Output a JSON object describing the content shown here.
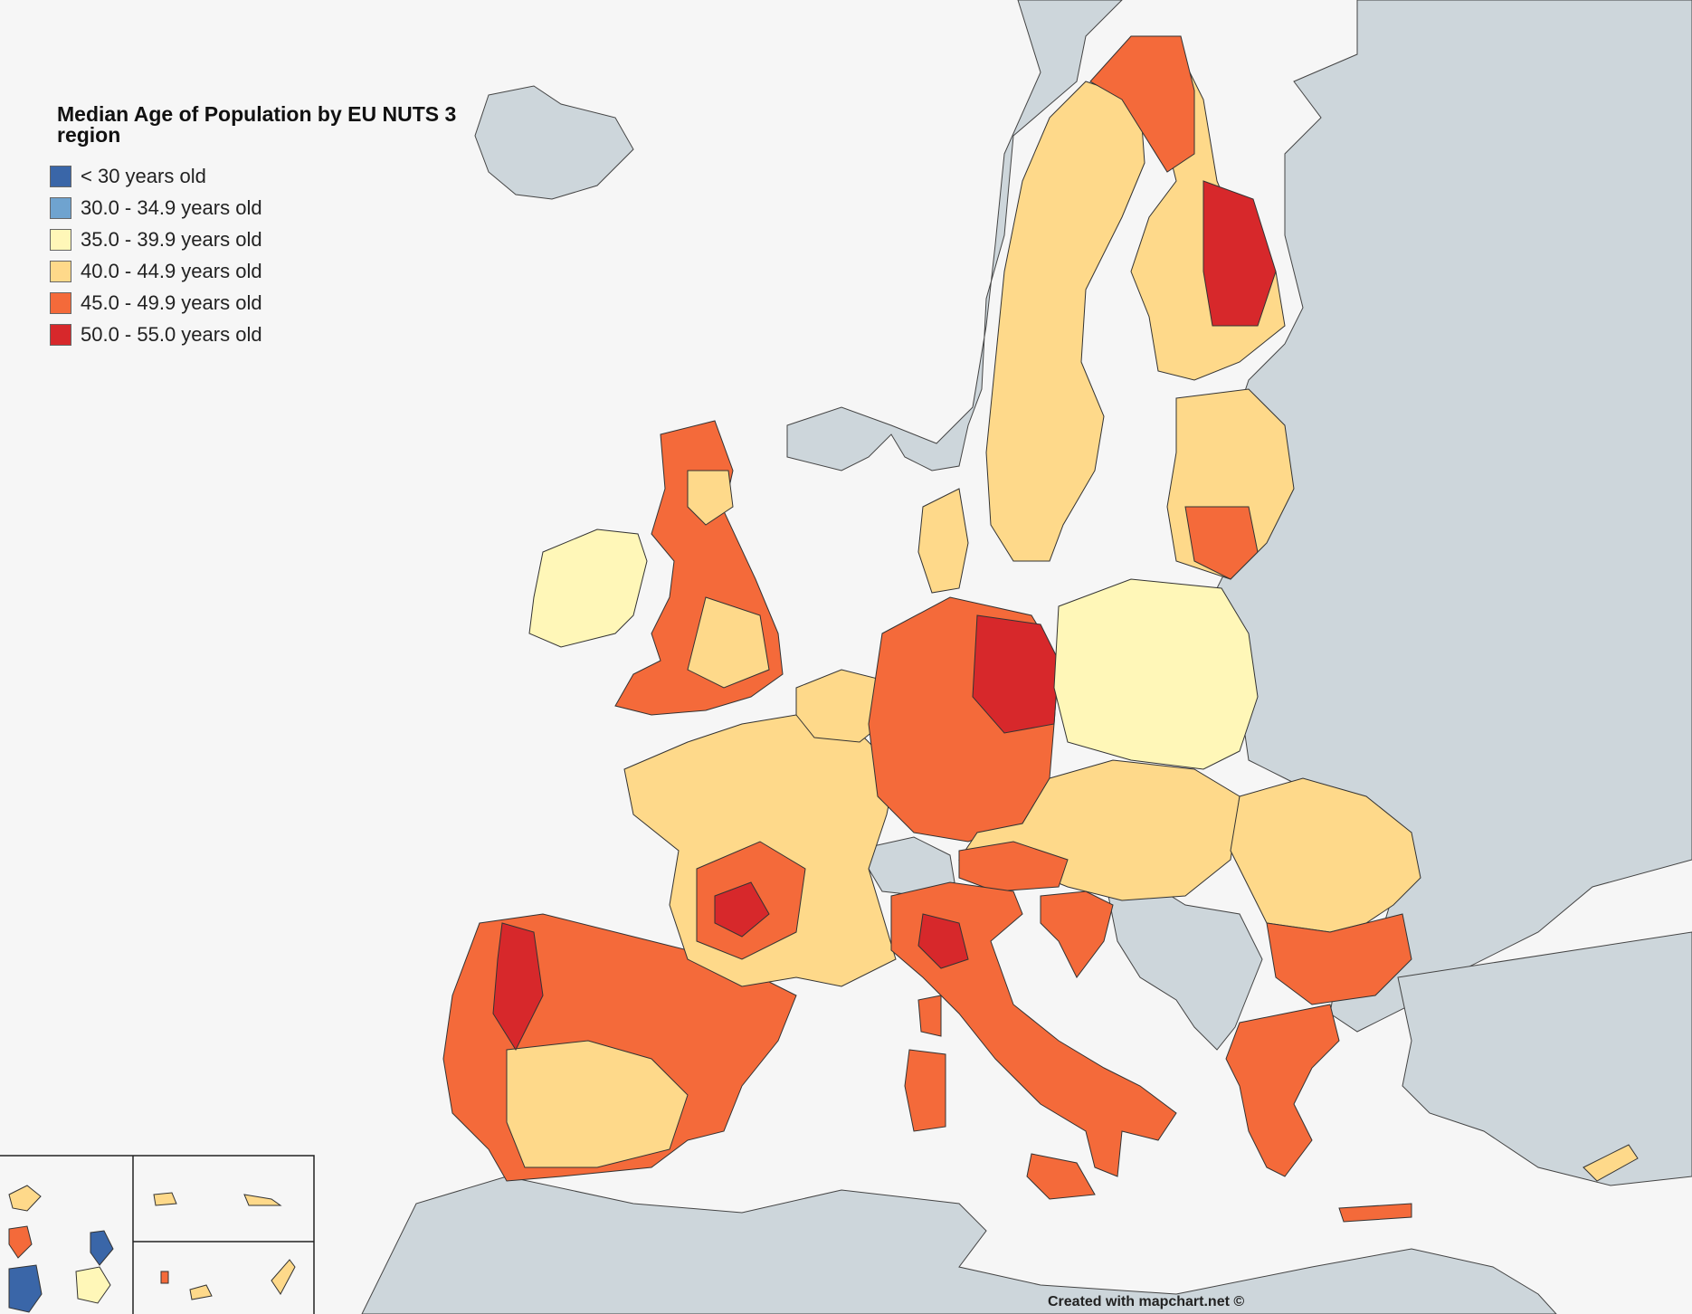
{
  "title": "Median Age of Population by EU NUTS 3 region",
  "legend": [
    {
      "label": "< 30 years old",
      "color": "#3a66a8"
    },
    {
      "label": "30.0 - 34.9 years old",
      "color": "#6fa3cf"
    },
    {
      "label": "35.0 - 39.9 years old",
      "color": "#fff7b8"
    },
    {
      "label": "40.0 - 44.9 years old",
      "color": "#fed98a"
    },
    {
      "label": "45.0 - 49.9 years old",
      "color": "#f46a3a"
    },
    {
      "label": "50.0 - 55.0 years old",
      "color": "#d7282b"
    }
  ],
  "colors": {
    "sea": "#f6f6f6",
    "non_eu_land": "#cdd6db",
    "border": "#333333"
  },
  "credit": "Created with mapchart.net ©"
}
